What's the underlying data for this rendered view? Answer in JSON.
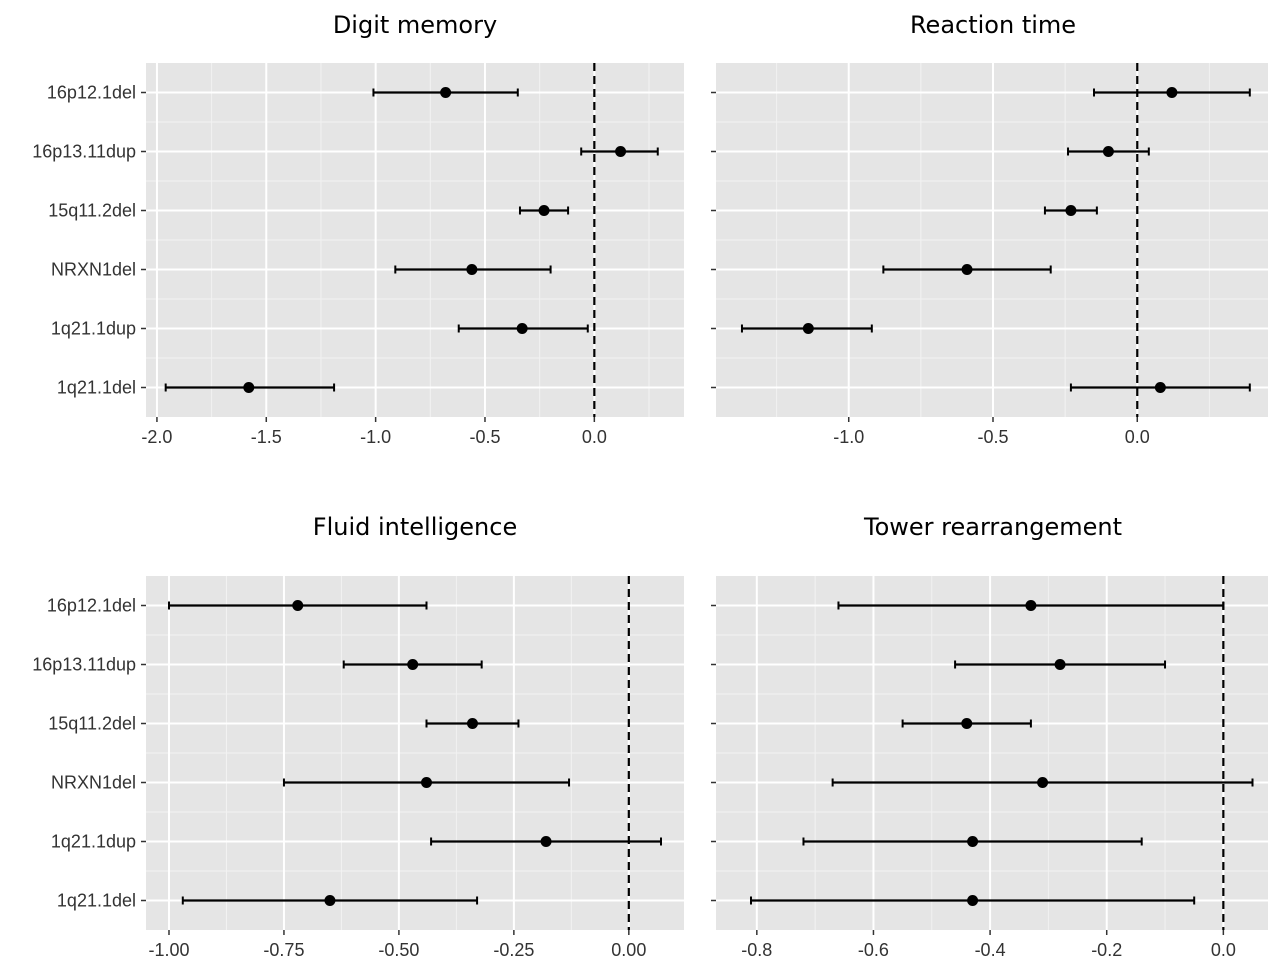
{
  "chart_data": [
    {
      "type": "forest",
      "title": "Digit memory",
      "categories": [
        "16p12.1del",
        "16p13.11dup",
        "15q11.2del",
        "NRXN1del",
        "1q21.1dup",
        "1q21.1del"
      ],
      "estimates": [
        -0.68,
        0.12,
        -0.23,
        -0.56,
        -0.33,
        -1.58
      ],
      "ci_low": [
        -1.01,
        -0.06,
        -0.34,
        -0.91,
        -0.62,
        -1.96
      ],
      "ci_high": [
        -0.35,
        0.29,
        -0.12,
        -0.2,
        -0.03,
        -1.19
      ],
      "xlim": [
        -2.05,
        0.41
      ],
      "xticks": [
        -2.0,
        -1.5,
        -1.0,
        -0.5,
        0.0
      ],
      "xtick_labels": [
        "-2.0",
        "-1.5",
        "-1.0",
        "-0.5",
        "0.0"
      ],
      "reference_line": 0,
      "show_y_labels": true,
      "grid": true
    },
    {
      "type": "forest",
      "title": "Reaction time",
      "categories": [
        "16p12.1del",
        "16p13.11dup",
        "15q11.2del",
        "NRXN1del",
        "1q21.1dup",
        "1q21.1del"
      ],
      "estimates": [
        0.12,
        -0.1,
        -0.23,
        -0.59,
        -1.14,
        0.08
      ],
      "ci_low": [
        -0.15,
        -0.24,
        -0.32,
        -0.88,
        -1.37,
        -0.23
      ],
      "ci_high": [
        0.39,
        0.04,
        -0.14,
        -0.3,
        -0.92,
        0.39
      ],
      "xlim": [
        -1.46,
        0.46
      ],
      "xticks": [
        -1.0,
        -0.5,
        0.0
      ],
      "xtick_labels": [
        "-1.0",
        "-0.5",
        "0.0"
      ],
      "reference_line": 0,
      "show_y_labels": false,
      "grid": true
    },
    {
      "type": "forest",
      "title": "Fluid intelligence",
      "categories": [
        "16p12.1del",
        "16p13.11dup",
        "15q11.2del",
        "NRXN1del",
        "1q21.1dup",
        "1q21.1del"
      ],
      "estimates": [
        -0.72,
        -0.47,
        -0.34,
        -0.44,
        -0.18,
        -0.65
      ],
      "ci_low": [
        -1.0,
        -0.62,
        -0.44,
        -0.75,
        -0.43,
        -0.97
      ],
      "ci_high": [
        -0.44,
        -0.32,
        -0.24,
        -0.13,
        0.07,
        -0.33
      ],
      "xlim": [
        -1.05,
        0.12
      ],
      "xticks": [
        -1.0,
        -0.75,
        -0.5,
        -0.25,
        0.0
      ],
      "xtick_labels": [
        "-1.00",
        "-0.75",
        "-0.50",
        "-0.25",
        "0.00"
      ],
      "reference_line": 0,
      "show_y_labels": true,
      "grid": true
    },
    {
      "type": "forest",
      "title": "Tower rearrangement",
      "categories": [
        "16p12.1del",
        "16p13.11dup",
        "15q11.2del",
        "NRXN1del",
        "1q21.1dup",
        "1q21.1del"
      ],
      "estimates": [
        -0.33,
        -0.28,
        -0.44,
        -0.31,
        -0.43,
        -0.43
      ],
      "ci_low": [
        -0.66,
        -0.46,
        -0.55,
        -0.67,
        -0.72,
        -0.81
      ],
      "ci_high": [
        0.0,
        -0.1,
        -0.33,
        0.05,
        -0.14,
        -0.05
      ],
      "xlim": [
        -0.87,
        0.08
      ],
      "xticks": [
        -0.8,
        -0.6,
        -0.4,
        -0.2,
        0.0
      ],
      "xtick_labels": [
        "-0.8",
        "-0.6",
        "-0.4",
        "-0.2",
        "0.0"
      ],
      "reference_line": 0,
      "show_y_labels": false,
      "grid": true
    }
  ],
  "colors": {
    "panel_background": "#e5e5e5",
    "grid_major": "#ffffff",
    "grid_minor": "#f2f2f2",
    "point": "#000000",
    "errorbar": "#000000",
    "reference_line": "#000000",
    "tick_text": "#333333",
    "title_text": "#000000"
  }
}
